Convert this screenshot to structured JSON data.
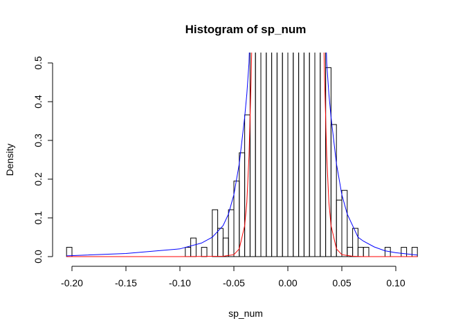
{
  "chart_data": {
    "type": "bar",
    "title": "Histogram of sp_num",
    "xlabel": "sp_num",
    "ylabel": "Density",
    "xlim": [
      -0.205,
      0.12
    ],
    "ylim": [
      0,
      0.5
    ],
    "grid": false,
    "x_ticks": [
      -0.2,
      -0.15,
      -0.1,
      -0.05,
      0.0,
      0.05,
      0.1
    ],
    "x_tick_labels": [
      "-0.20",
      "-0.15",
      "-0.10",
      "-0.05",
      "0.00",
      "0.05",
      "0.10"
    ],
    "y_ticks": [
      0.0,
      0.1,
      0.2,
      0.3,
      0.4,
      0.5
    ],
    "y_tick_labels": [
      "0.0",
      "0.1",
      "0.2",
      "0.3",
      "0.4",
      "0.5"
    ],
    "bin_width": 0.005,
    "bins": [
      {
        "x0": -0.205,
        "x1": -0.2,
        "density": 0.024
      },
      {
        "x0": -0.095,
        "x1": -0.09,
        "density": 0.024
      },
      {
        "x0": -0.09,
        "x1": -0.085,
        "density": 0.048
      },
      {
        "x0": -0.08,
        "x1": -0.075,
        "density": 0.024
      },
      {
        "x0": -0.07,
        "x1": -0.065,
        "density": 0.121
      },
      {
        "x0": -0.065,
        "x1": -0.06,
        "density": 0.073
      },
      {
        "x0": -0.06,
        "x1": -0.055,
        "density": 0.048
      },
      {
        "x0": -0.055,
        "x1": -0.05,
        "density": 0.121
      },
      {
        "x0": -0.05,
        "x1": -0.045,
        "density": 0.195
      },
      {
        "x0": -0.045,
        "x1": -0.04,
        "density": 0.268
      },
      {
        "x0": -0.04,
        "x1": -0.035,
        "density": 0.366
      },
      {
        "x0": -0.035,
        "x1": -0.03,
        "density": 1.0
      },
      {
        "x0": -0.03,
        "x1": -0.025,
        "density": 1.0
      },
      {
        "x0": -0.025,
        "x1": -0.02,
        "density": 1.0
      },
      {
        "x0": -0.02,
        "x1": -0.015,
        "density": 1.0
      },
      {
        "x0": -0.015,
        "x1": -0.01,
        "density": 1.0
      },
      {
        "x0": -0.01,
        "x1": -0.005,
        "density": 1.0
      },
      {
        "x0": -0.005,
        "x1": 0.0,
        "density": 1.0
      },
      {
        "x0": 0.0,
        "x1": 0.005,
        "density": 1.0
      },
      {
        "x0": 0.005,
        "x1": 0.01,
        "density": 1.0
      },
      {
        "x0": 0.01,
        "x1": 0.015,
        "density": 1.0
      },
      {
        "x0": 0.015,
        "x1": 0.02,
        "density": 1.0
      },
      {
        "x0": 0.02,
        "x1": 0.025,
        "density": 1.0
      },
      {
        "x0": 0.025,
        "x1": 0.03,
        "density": 1.0
      },
      {
        "x0": 0.03,
        "x1": 0.035,
        "density": 1.0
      },
      {
        "x0": 0.035,
        "x1": 0.04,
        "density": 0.488
      },
      {
        "x0": 0.04,
        "x1": 0.045,
        "density": 0.341
      },
      {
        "x0": 0.045,
        "x1": 0.05,
        "density": 0.146
      },
      {
        "x0": 0.05,
        "x1": 0.055,
        "density": 0.171
      },
      {
        "x0": 0.055,
        "x1": 0.06,
        "density": 0.024
      },
      {
        "x0": 0.06,
        "x1": 0.065,
        "density": 0.073
      },
      {
        "x0": 0.065,
        "x1": 0.07,
        "density": 0.024
      },
      {
        "x0": 0.07,
        "x1": 0.075,
        "density": 0.024
      },
      {
        "x0": 0.09,
        "x1": 0.095,
        "density": 0.024
      },
      {
        "x0": 0.105,
        "x1": 0.11,
        "density": 0.024
      },
      {
        "x0": 0.115,
        "x1": 0.12,
        "density": 0.024
      }
    ],
    "series": [
      {
        "type": "line",
        "color": "#0000ff",
        "x": [
          -0.205,
          -0.15,
          -0.1,
          -0.08,
          -0.07,
          -0.06,
          -0.055,
          -0.05,
          -0.045,
          -0.04,
          -0.038,
          -0.036,
          -0.035,
          0.035,
          0.036,
          0.038,
          0.04,
          0.045,
          0.05,
          0.055,
          0.06,
          0.065,
          0.07,
          0.08,
          0.09,
          0.1,
          0.12
        ],
        "y": [
          0.002,
          0.008,
          0.02,
          0.035,
          0.05,
          0.08,
          0.11,
          0.16,
          0.24,
          0.36,
          0.42,
          0.5,
          0.6,
          0.6,
          0.5,
          0.42,
          0.36,
          0.24,
          0.16,
          0.11,
          0.08,
          0.05,
          0.04,
          0.025,
          0.015,
          0.01,
          0.004
        ]
      },
      {
        "type": "line",
        "color": "#ff0000",
        "x": [
          -0.205,
          -0.1,
          -0.06,
          -0.05,
          -0.045,
          -0.04,
          -0.038,
          -0.036,
          -0.035,
          -0.034,
          -0.033,
          0.033,
          0.034,
          0.035,
          0.036,
          0.038,
          0.04,
          0.045,
          0.05,
          0.06,
          0.07,
          0.1,
          0.12
        ],
        "y": [
          0.0,
          0.0,
          0.001,
          0.005,
          0.02,
          0.08,
          0.14,
          0.26,
          0.36,
          0.46,
          0.6,
          0.6,
          0.46,
          0.36,
          0.26,
          0.14,
          0.08,
          0.02,
          0.005,
          0.001,
          0.0,
          0.0,
          0.0
        ]
      }
    ]
  }
}
